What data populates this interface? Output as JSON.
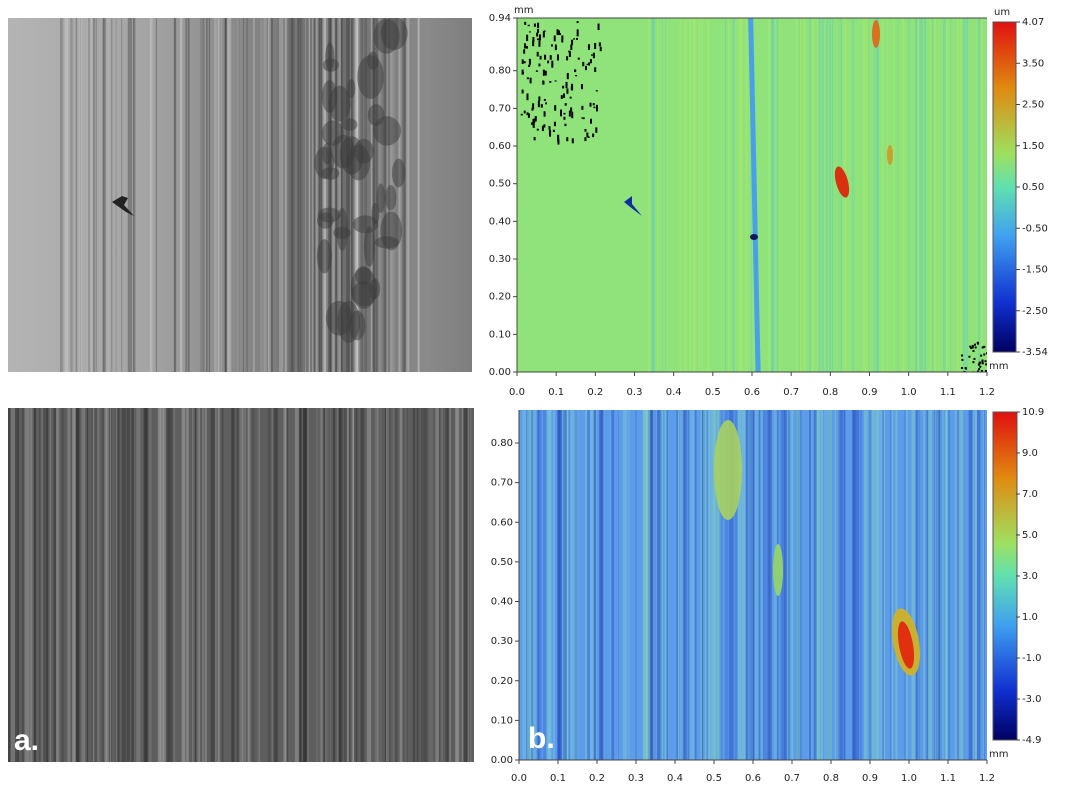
{
  "panels": [
    {
      "x_unit": "mm",
      "y_unit": "mm",
      "color_unit": "um",
      "xticks": [
        "0.0",
        "0.1",
        "0.2",
        "0.3",
        "0.4",
        "0.5",
        "0.6",
        "0.7",
        "0.8",
        "0.9",
        "1.0",
        "1.1",
        "1.2"
      ],
      "yticks": [
        "0.00",
        "0.10",
        "0.20",
        "0.30",
        "0.40",
        "0.50",
        "0.60",
        "0.70",
        "0.80",
        "0.94"
      ],
      "colorbar_labels": [
        "4.07",
        "3.50",
        "2.50",
        "1.50",
        "0.50",
        "-0.50",
        "-1.50",
        "-2.50",
        "-3.54"
      ]
    },
    {
      "x_unit": "mm",
      "xticks": [
        "0.0",
        "0.1",
        "0.2",
        "0.3",
        "0.4",
        "0.5",
        "0.6",
        "0.7",
        "0.8",
        "0.9",
        "1.0",
        "1.1",
        "1.2"
      ],
      "yticks": [
        "0.00",
        "0.10",
        "0.20",
        "0.30",
        "0.40",
        "0.50",
        "0.60",
        "0.70",
        "0.80"
      ],
      "colorbar_labels": [
        "10.9",
        "9.0",
        "7.0",
        "5.0",
        "3.0",
        "1.0",
        "-1.0",
        "-3.0",
        "-4.9"
      ]
    }
  ],
  "labels": {
    "left": "a.",
    "right": "b."
  }
}
